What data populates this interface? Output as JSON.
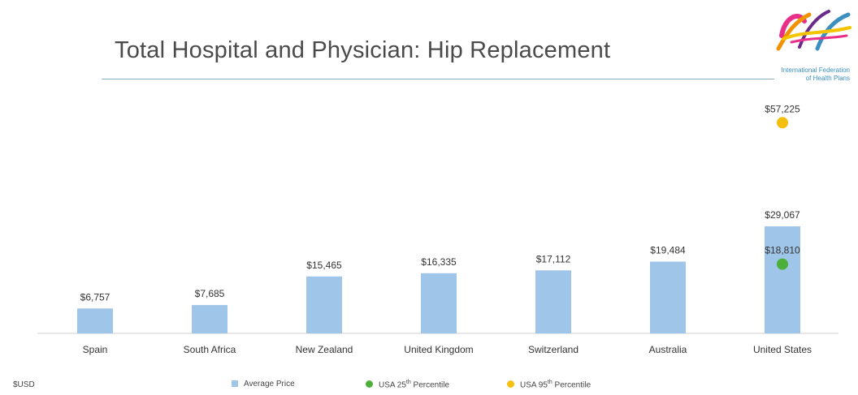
{
  "title": "Total Hospital and Physician: Hip Replacement",
  "logo": {
    "line1": "International Federation",
    "line2": "of Health Plans",
    "colors": [
      "#e8308a",
      "#f39200",
      "#3a8fc0",
      "#6a2a8a",
      "#f5c400"
    ]
  },
  "unit_label": "$USD",
  "legend": {
    "average": "Average Price",
    "p25_prefix": "USA 25",
    "p25_sup": "th",
    "p25_suffix": " Percentile",
    "p95_prefix": "USA 95",
    "p95_sup": "th",
    "p95_suffix": " Percentile"
  },
  "colors": {
    "bar": "#9fc5e8",
    "p25": "#4caf3a",
    "p95": "#f5bf0f",
    "axis": "#cfcfcf",
    "label": "#333333"
  },
  "chart_data": {
    "type": "bar",
    "title": "Total Hospital and Physician: Hip Replacement",
    "categories": [
      "Spain",
      "South Africa",
      "New Zealand",
      "United Kingdom",
      "Switzerland",
      "Australia",
      "United States"
    ],
    "series": [
      {
        "name": "Average Price",
        "values": [
          6757,
          7685,
          15465,
          16335,
          17112,
          19484,
          29067
        ],
        "labels": [
          "$6,757",
          "$7,685",
          "$15,465",
          "$16,335",
          "$17,112",
          "$19,484",
          "$29,067"
        ]
      }
    ],
    "markers": [
      {
        "name": "USA 25th Percentile",
        "category": "United States",
        "value": 18810,
        "label": "$18,810"
      },
      {
        "name": "USA 95th Percentile",
        "category": "United States",
        "value": 57225,
        "label": "$57,225"
      }
    ],
    "ylabel": "$USD",
    "grid": false,
    "legend_position": "bottom"
  }
}
